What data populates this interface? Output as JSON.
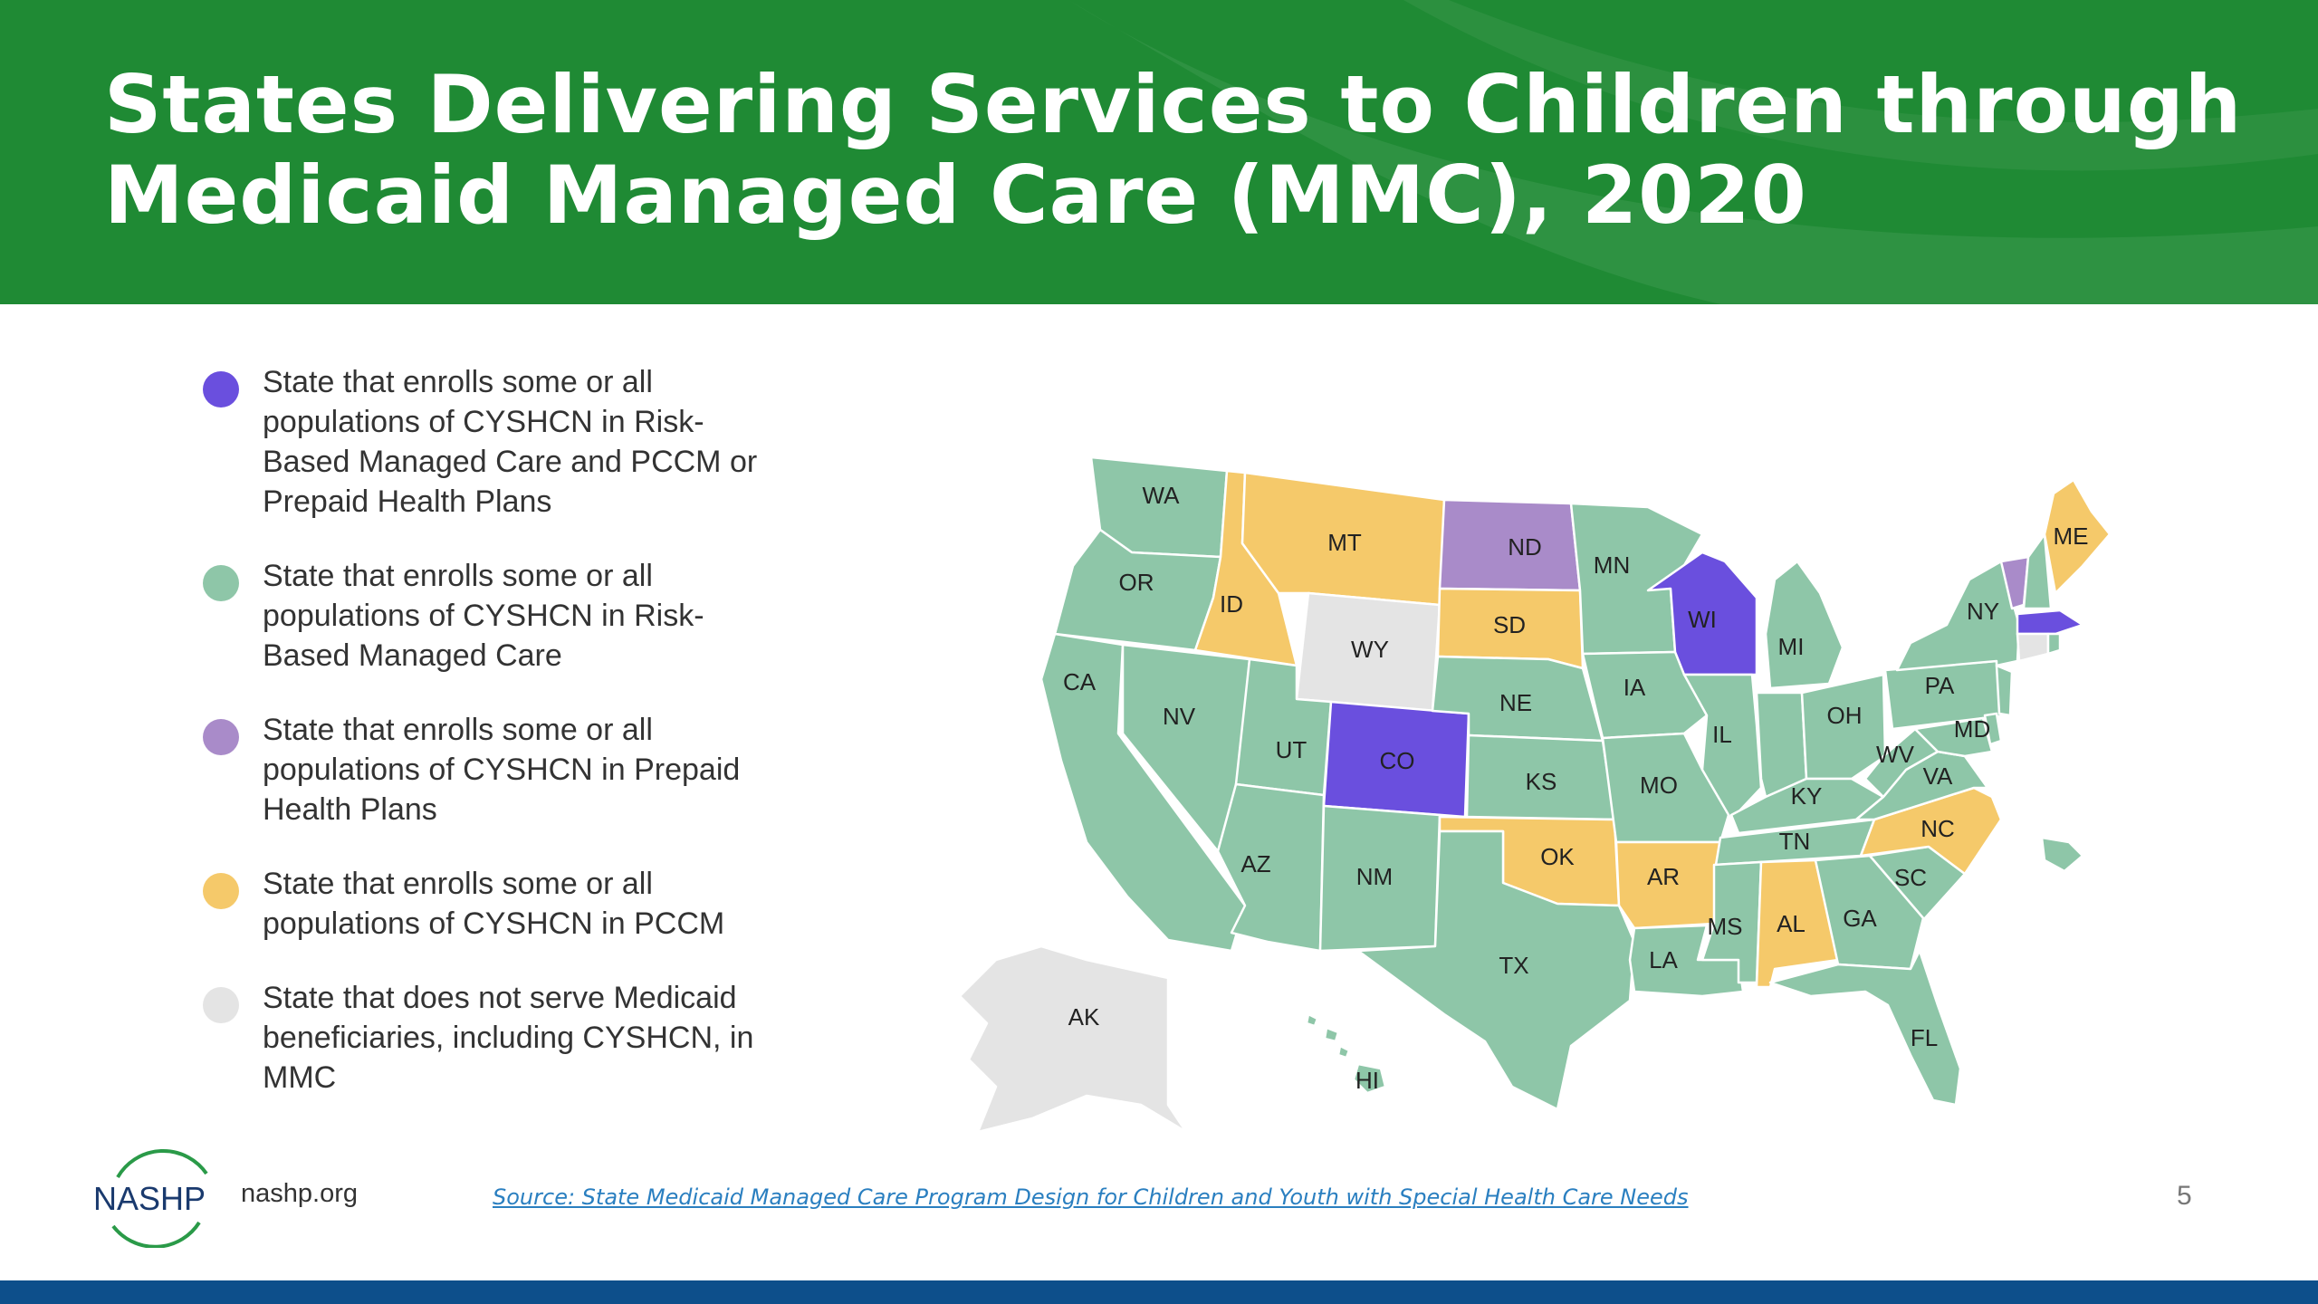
{
  "title_line1": "States Delivering Services to Children through",
  "title_line2": "Medicaid Managed Care (MMC), 2020",
  "colors": {
    "header_bg": "#1f8a34",
    "risk_pccm": "#6a4fde",
    "risk": "#8ec6a8",
    "prepaid": "#a98bc9",
    "pccm": "#f5c96a",
    "none": "#e4e4e4",
    "bottom_bar": "#0d4f8b"
  },
  "legend": [
    {
      "category": "risk_pccm",
      "color": "#6a4fde",
      "lines": [
        "State that enrolls some or all",
        "populations of CYSHCN in Risk-",
        "Based Managed Care and PCCM or",
        "Prepaid Health Plans"
      ]
    },
    {
      "category": "risk",
      "color": "#8ec6a8",
      "lines": [
        "State that enrolls some or all",
        "populations of CYSHCN in Risk-",
        "Based Managed Care"
      ]
    },
    {
      "category": "prepaid",
      "color": "#a98bc9",
      "lines": [
        "State that enrolls some or all",
        "populations of CYSHCN in Prepaid",
        "Health Plans"
      ]
    },
    {
      "category": "pccm",
      "color": "#f5c96a",
      "lines": [
        "State that enrolls some or all",
        "populations of CYSHCN in PCCM"
      ]
    },
    {
      "category": "none",
      "color": "#e4e4e4",
      "lines": [
        "State that does not serve Medicaid",
        "beneficiaries, including CYSHCN, in",
        "MMC"
      ]
    }
  ],
  "states": {
    "WA": "risk",
    "OR": "risk",
    "CA": "risk",
    "NV": "risk",
    "ID": "pccm",
    "MT": "pccm",
    "WY": "none",
    "UT": "risk",
    "CO": "risk_pccm",
    "AZ": "risk",
    "NM": "risk",
    "ND": "prepaid",
    "SD": "pccm",
    "NE": "risk",
    "KS": "risk",
    "OK": "pccm",
    "TX": "risk",
    "MN": "risk",
    "IA": "risk",
    "MO": "risk",
    "AR": "pccm",
    "LA": "risk",
    "WI": "risk_pccm",
    "IL": "risk",
    "MI": "risk",
    "IN": "risk",
    "OH": "risk",
    "KY": "risk",
    "TN": "risk",
    "MS": "risk",
    "AL": "pccm",
    "GA": "risk",
    "FL": "risk",
    "SC": "risk",
    "NC": "pccm",
    "VA": "risk",
    "WV": "risk",
    "MD": "risk",
    "DE": "risk",
    "PA": "risk",
    "NJ": "risk",
    "NY": "risk",
    "CT": "none",
    "RI": "risk",
    "MA": "risk_pccm",
    "VT": "prepaid",
    "NH": "risk",
    "ME": "pccm",
    "AK": "none",
    "HI": "risk",
    "PR": "risk"
  },
  "footer": {
    "logo_text": "NASHP",
    "site": "nashp.org",
    "source": "Source: State Medicaid Managed Care Program Design for Children and Youth with Special Health Care Needs",
    "page_number": "5"
  }
}
